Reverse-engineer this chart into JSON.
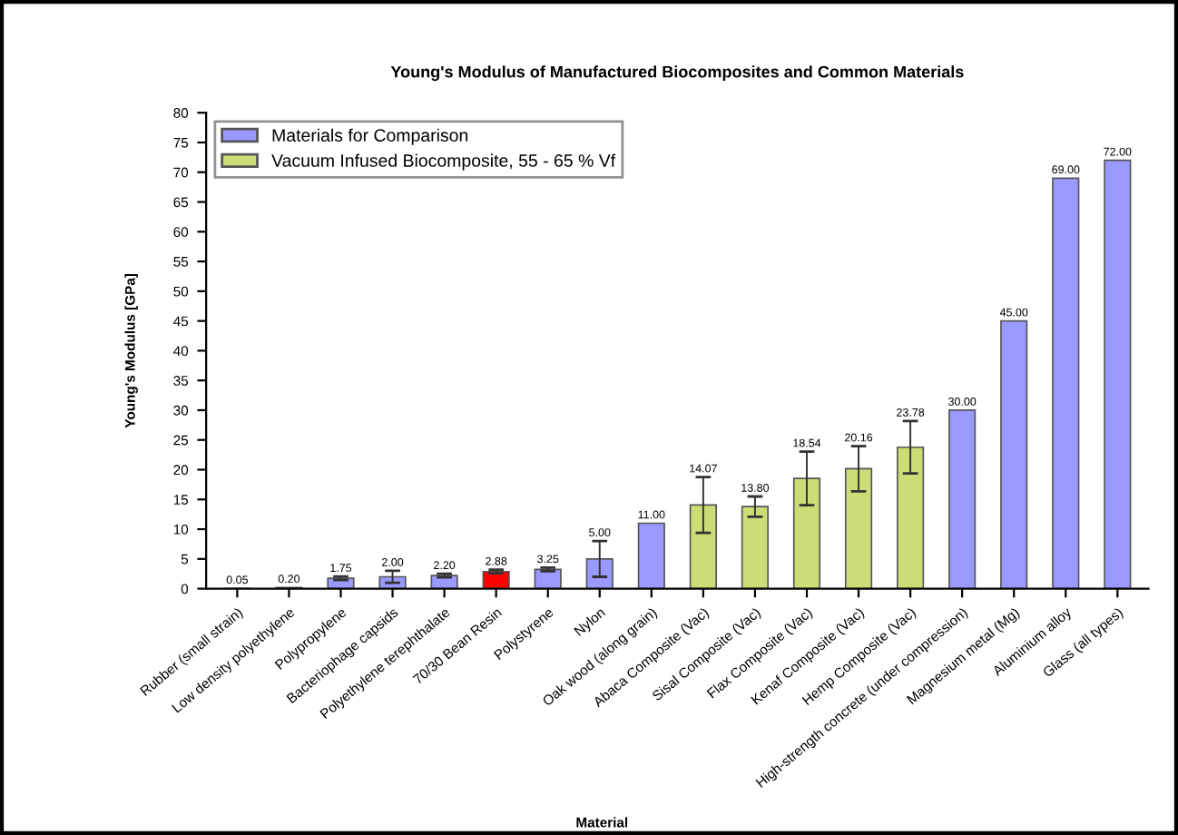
{
  "chart_data": {
    "type": "bar",
    "title": "Young's Modulus of Manufactured Biocomposites and Common Materials",
    "xlabel": "Material",
    "ylabel": "Young's Modulus [GPa]",
    "categories": [
      "Rubber (small strain)",
      "Low density polyethylene",
      "Polypropylene",
      "Bacteriophage capsids",
      "Polyethylene terephthalate",
      "70/30 Bean Resin",
      "Polystyrene",
      "Nylon",
      "Oak wood (along grain)",
      "Abaca Composite (Vac)",
      "Sisal Composite (Vac)",
      "Flax Composite (Vac)",
      "Kenaf Composite (Vac)",
      "Hemp Composite (Vac)",
      "High-strength concrete (under compression)",
      "Magnesium metal (Mg)",
      "Aluminium alloy",
      "Glass (all types)"
    ],
    "series": [
      {
        "name": "Materials for Comparison",
        "color": "#9999ff",
        "colors": [
          "#9999ff",
          "#9999ff",
          "#9999ff",
          "#9999ff",
          "#9999ff",
          "#ff0000",
          "#9999ff",
          "#9999ff",
          "#9999ff",
          null,
          null,
          null,
          null,
          null,
          "#9999ff",
          "#9999ff",
          "#9999ff",
          "#9999ff"
        ],
        "values": [
          0.05,
          0.2,
          1.75,
          2.0,
          2.2,
          2.88,
          3.25,
          5.0,
          11.0,
          null,
          null,
          null,
          null,
          null,
          30.0,
          45.0,
          69.0,
          72.0
        ],
        "errors": [
          null,
          null,
          0.3,
          1.0,
          0.3,
          0.3,
          0.3,
          3.0,
          null,
          null,
          null,
          null,
          null,
          null,
          null,
          null,
          null,
          null
        ],
        "value_labels": [
          "0.05",
          "0.20",
          "1.75",
          "2.00",
          "2.20",
          "2.88",
          "3.25",
          "5.00",
          "11.00",
          null,
          null,
          null,
          null,
          null,
          "30.00",
          "45.00",
          "69.00",
          "72.00"
        ]
      },
      {
        "name": "Vacuum Infused Biocomposite, 55 - 65 % Vf",
        "color": "#ccdd77",
        "values": [
          null,
          null,
          null,
          null,
          null,
          null,
          null,
          null,
          null,
          14.07,
          13.8,
          18.54,
          20.16,
          23.78,
          null,
          null,
          null,
          null
        ],
        "errors": [
          null,
          null,
          null,
          null,
          null,
          null,
          null,
          null,
          null,
          4.7,
          1.7,
          4.5,
          3.8,
          4.4,
          null,
          null,
          null,
          null
        ],
        "value_labels": [
          null,
          null,
          null,
          null,
          null,
          null,
          null,
          null,
          null,
          "14.07",
          "13.80",
          "18.54",
          "20.16",
          "23.78",
          null,
          null,
          null,
          null
        ]
      }
    ],
    "ylim": [
      0,
      80
    ],
    "yticks": [
      0,
      5,
      10,
      15,
      20,
      25,
      30,
      35,
      40,
      45,
      50,
      55,
      60,
      65,
      70,
      75,
      80
    ],
    "legend": "top left",
    "grid": false
  }
}
